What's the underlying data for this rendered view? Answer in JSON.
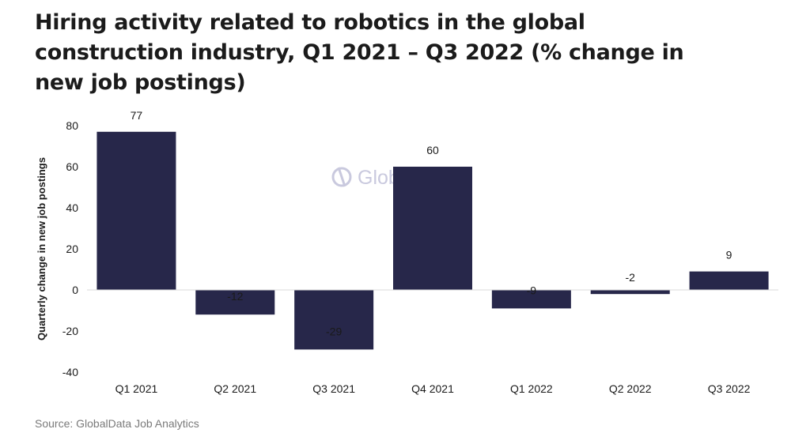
{
  "title": "Hiring activity related to robotics in the global construction industry, Q1 2021 – Q3 2022 (% change in new job postings)",
  "source": "Source: GlobalData Job Analytics",
  "watermark": "GlobalData.",
  "colors": {
    "bar": "#27274a",
    "zero_line": "#d9d9d9",
    "watermark": "#c9c9de"
  },
  "chart_data": {
    "type": "bar",
    "title": "Hiring activity related to robotics in the global construction industry, Q1 2021 – Q3 2022 (% change in new job postings)",
    "ylabel": "Quarterly change in new job postings",
    "xlabel": "",
    "categories": [
      "Q1 2021",
      "Q2 2021",
      "Q3 2021",
      "Q4 2021",
      "Q1 2022",
      "Q2 2022",
      "Q3 2022"
    ],
    "values": [
      77,
      -12,
      -29,
      60,
      -9,
      -2,
      9
    ],
    "ylim": [
      -40,
      80
    ],
    "yticks": [
      80,
      60,
      40,
      20,
      0,
      -20,
      -40
    ],
    "grid": false,
    "legend": "none"
  }
}
